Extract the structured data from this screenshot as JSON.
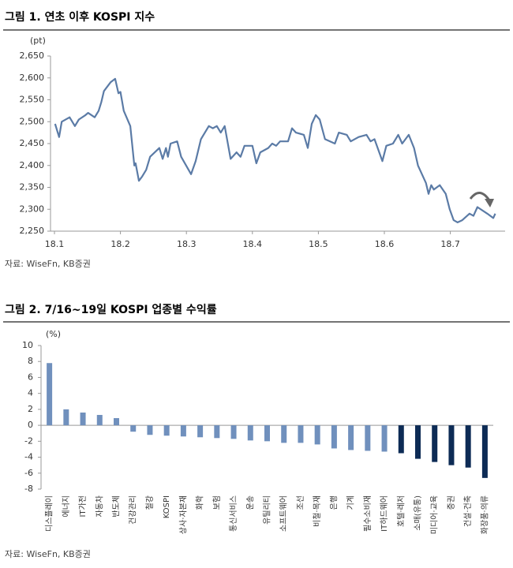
{
  "chart_data": [
    {
      "type": "line",
      "title": "그림 1. 연초 이후 KOSPI 지수",
      "y_label": "(pt)",
      "source": "자료: WiseFn, KB증권",
      "color": "#5b7ba6",
      "x": [
        1.01,
        1.07,
        1.11,
        1.23,
        1.31,
        1.37,
        1.47,
        1.51,
        1.61,
        1.67,
        1.71,
        1.75,
        1.85,
        1.92,
        1.97,
        2.0,
        2.05,
        2.15,
        2.21,
        2.23,
        2.28,
        2.33,
        2.39,
        2.45,
        2.59,
        2.64,
        2.69,
        2.72,
        2.76,
        2.86,
        2.92,
        3.07,
        3.14,
        3.22,
        3.34,
        3.4,
        3.46,
        3.52,
        3.58,
        3.67,
        3.76,
        3.82,
        3.88,
        4.0,
        4.06,
        4.12,
        4.24,
        4.3,
        4.36,
        4.42,
        4.54,
        4.6,
        4.66,
        4.78,
        4.84,
        4.9,
        4.96,
        5.02,
        5.1,
        5.25,
        5.31,
        5.43,
        5.49,
        5.61,
        5.73,
        5.79,
        5.85,
        5.97,
        6.03,
        6.13,
        6.21,
        6.27,
        6.37,
        6.45,
        6.51,
        6.63,
        6.67,
        6.71,
        6.75,
        6.84,
        6.93,
        6.99,
        7.05,
        7.11,
        7.18,
        7.29,
        7.35,
        7.41,
        7.56,
        7.65,
        7.68
      ],
      "values": [
        2495,
        2465,
        2500,
        2510,
        2490,
        2505,
        2515,
        2520,
        2510,
        2525,
        2545,
        2570,
        2590,
        2598,
        2565,
        2568,
        2525,
        2490,
        2400,
        2405,
        2365,
        2375,
        2390,
        2420,
        2440,
        2415,
        2440,
        2420,
        2450,
        2455,
        2420,
        2380,
        2410,
        2460,
        2490,
        2485,
        2490,
        2475,
        2490,
        2415,
        2430,
        2420,
        2445,
        2445,
        2405,
        2430,
        2440,
        2450,
        2445,
        2455,
        2455,
        2485,
        2475,
        2470,
        2440,
        2495,
        2515,
        2505,
        2460,
        2450,
        2475,
        2470,
        2455,
        2465,
        2470,
        2455,
        2460,
        2410,
        2445,
        2450,
        2470,
        2450,
        2470,
        2440,
        2400,
        2360,
        2335,
        2355,
        2345,
        2355,
        2335,
        2300,
        2275,
        2270,
        2275,
        2290,
        2285,
        2305,
        2290,
        2280,
        2290
      ],
      "xlim": [
        1,
        7.83
      ],
      "xticks": [
        {
          "value": 1,
          "label": "18.1"
        },
        {
          "value": 2,
          "label": "18.2"
        },
        {
          "value": 3,
          "label": "18.3"
        },
        {
          "value": 4,
          "label": "18.4"
        },
        {
          "value": 5,
          "label": "18.5"
        },
        {
          "value": 6,
          "label": "18.6"
        },
        {
          "value": 7,
          "label": "18.7"
        }
      ],
      "ylim": [
        2250,
        2650
      ],
      "yticks": [
        {
          "value": 2250,
          "label": "2,250"
        },
        {
          "value": 2300,
          "label": "2,300"
        },
        {
          "value": 2350,
          "label": "2,350"
        },
        {
          "value": 2400,
          "label": "2,400"
        },
        {
          "value": 2450,
          "label": "2,450"
        },
        {
          "value": 2500,
          "label": "2,500"
        },
        {
          "value": 2550,
          "label": "2,550"
        },
        {
          "value": 2600,
          "label": "2,600"
        },
        {
          "value": 2650,
          "label": "2,650"
        }
      ]
    },
    {
      "type": "bar",
      "title": "그림 2. 7/16~19일 KOSPI 업종별 수익률",
      "y_label": "(%)",
      "source": "자료: WiseFn, KB증권",
      "categories": [
        "디스플레이",
        "에너지",
        "IT가전",
        "자동차",
        "반도체",
        "건강관리",
        "철강",
        "KOSPI",
        "상사·자본재",
        "화학",
        "보험",
        "통신서비스",
        "운송",
        "유틸리티",
        "소프트웨어",
        "조선",
        "비철·목재",
        "은행",
        "기계",
        "필수소비재",
        "IT하드웨어",
        "호텔·레저",
        "소매(유통)",
        "미디어·교육",
        "증권",
        "건설·건축",
        "화장품·의류"
      ],
      "values": [
        7.8,
        2.0,
        1.6,
        1.3,
        0.9,
        -0.8,
        -1.2,
        -1.3,
        -1.4,
        -1.5,
        -1.6,
        -1.7,
        -1.9,
        -2.0,
        -2.2,
        -2.2,
        -2.4,
        -2.9,
        -3.1,
        -3.2,
        -3.3,
        -3.5,
        -4.2,
        -4.6,
        -5.0,
        -5.3,
        -6.6
      ],
      "colors": [
        "#7090bd",
        "#7090bd",
        "#7090bd",
        "#7090bd",
        "#7090bd",
        "#7090bd",
        "#7090bd",
        "#7090bd",
        "#7090bd",
        "#7090bd",
        "#7090bd",
        "#7090bd",
        "#7090bd",
        "#7090bd",
        "#7090bd",
        "#7090bd",
        "#7090bd",
        "#7090bd",
        "#7090bd",
        "#7090bd",
        "#7090bd",
        "#0d2b55",
        "#0d2b55",
        "#0d2b55",
        "#0d2b55",
        "#0d2b55",
        "#0d2b55"
      ],
      "ylim": [
        -8,
        10
      ],
      "yticks": [
        -8,
        -6,
        -4,
        -2,
        0,
        2,
        4,
        6,
        8,
        10
      ]
    }
  ]
}
